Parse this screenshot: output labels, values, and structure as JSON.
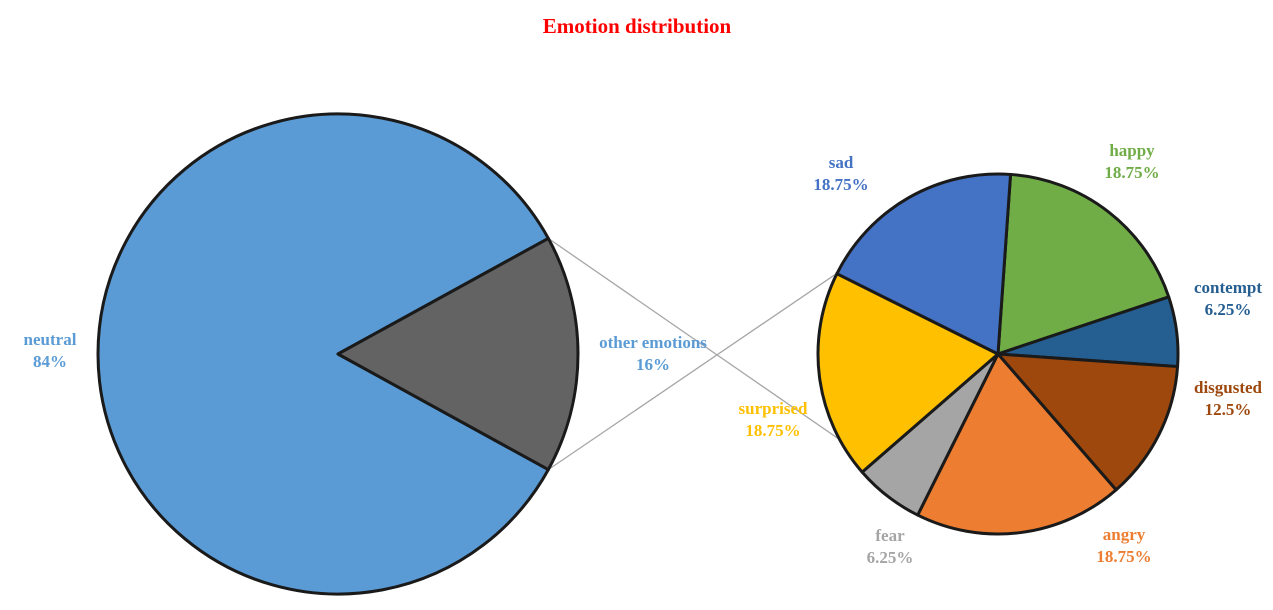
{
  "chart_data": {
    "type": "pie",
    "subtype": "pie-of-pie",
    "title": "Emotion distribution",
    "title_color": "#ff0000",
    "main_pie": {
      "slices": [
        {
          "label": "neutral",
          "value": 84,
          "value_label": "84%",
          "color": "#5b9bd5",
          "label_color": "#5b9bd5"
        },
        {
          "label": "other emotions",
          "value": 16,
          "value_label": "16%",
          "color": "#636363",
          "label_color": "#5b9bd5"
        }
      ]
    },
    "secondary_pie": {
      "slices": [
        {
          "label": "happy",
          "value": 18.75,
          "value_label": "18.75%",
          "color": "#70ad47",
          "label_color": "#70ad47"
        },
        {
          "label": "contempt",
          "value": 6.25,
          "value_label": "6.25%",
          "color": "#255e91",
          "label_color": "#255e91"
        },
        {
          "label": "disgusted",
          "value": 12.5,
          "value_label": "12.5%",
          "color": "#9e480e",
          "label_color": "#9e480e"
        },
        {
          "label": "angry",
          "value": 18.75,
          "value_label": "18.75%",
          "color": "#ed7d31",
          "label_color": "#ed7d31"
        },
        {
          "label": "fear",
          "value": 6.25,
          "value_label": "6.25%",
          "color": "#a5a5a5",
          "label_color": "#a5a5a5"
        },
        {
          "label": "surprised",
          "value": 18.75,
          "value_label": "18.75%",
          "color": "#ffc000",
          "label_color": "#ffc000"
        },
        {
          "label": "sad",
          "value": 18.75,
          "value_label": "18.75%",
          "color": "#4472c4",
          "label_color": "#4472c4"
        }
      ]
    },
    "connector_color": "#a6a6a6",
    "outline_color": "#1a1a1a"
  }
}
